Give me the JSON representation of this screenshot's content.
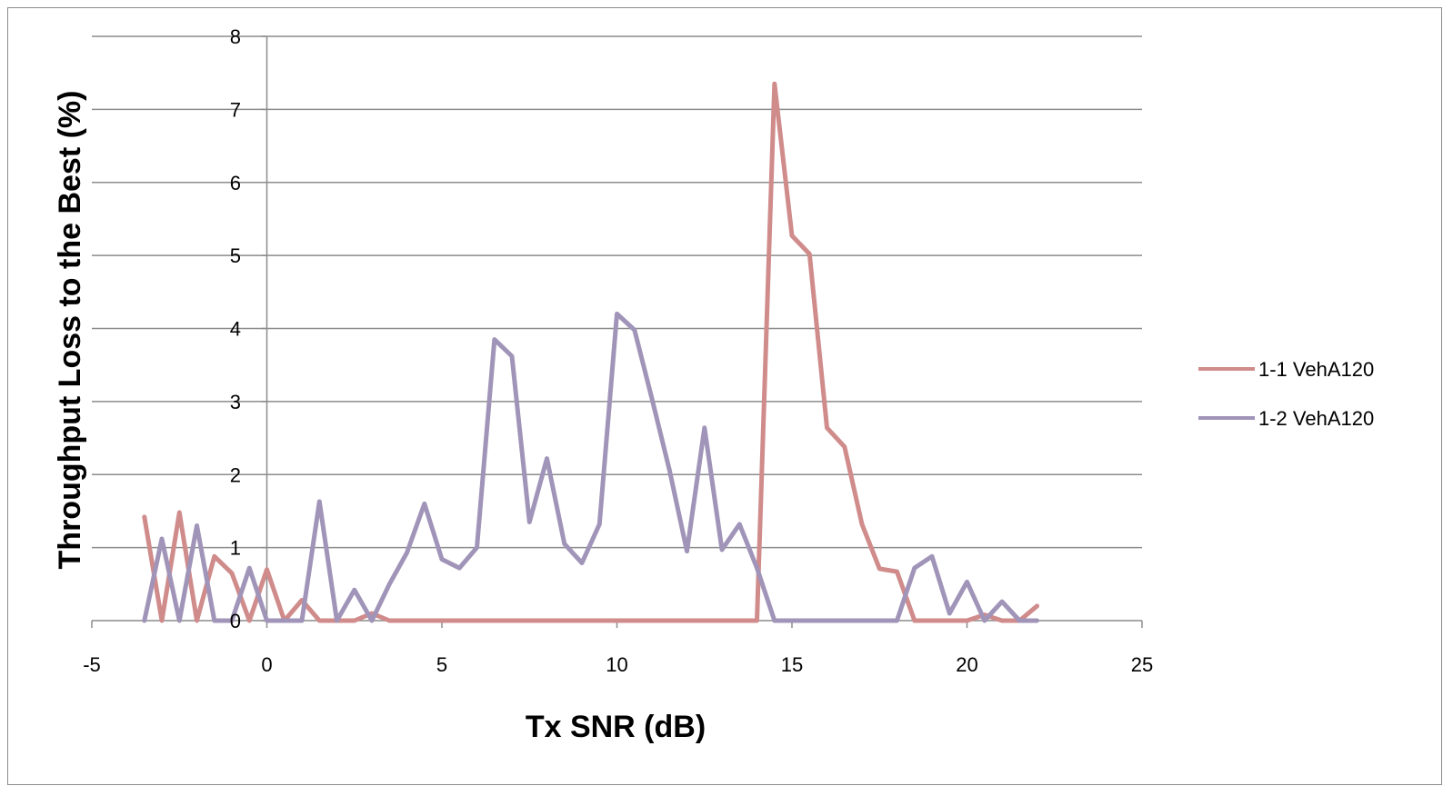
{
  "chart_data": {
    "type": "line",
    "title": "",
    "xlabel": "Tx SNR (dB)",
    "ylabel": "Throughput Loss to the Best (%)",
    "xlim": [
      -5,
      25
    ],
    "ylim": [
      0,
      8
    ],
    "xticks": [
      -5,
      0,
      5,
      10,
      15,
      20,
      25
    ],
    "yticks": [
      0,
      1,
      2,
      3,
      4,
      5,
      6,
      7,
      8
    ],
    "grid": "horizontal",
    "legend_position": "right",
    "series": [
      {
        "name": "1-1 VehA120",
        "color": "#d08b8b",
        "points": [
          [
            -3.5,
            1.42
          ],
          [
            -3.0,
            0.0
          ],
          [
            -2.5,
            1.48
          ],
          [
            -2.0,
            0.0
          ],
          [
            -1.5,
            0.88
          ],
          [
            -1.0,
            0.65
          ],
          [
            -0.5,
            0.0
          ],
          [
            0.0,
            0.7
          ],
          [
            0.5,
            0.0
          ],
          [
            1.0,
            0.28
          ],
          [
            1.5,
            0.0
          ],
          [
            2.0,
            0.0
          ],
          [
            2.5,
            0.0
          ],
          [
            3.0,
            0.1
          ],
          [
            3.5,
            0.0
          ],
          [
            4.0,
            0.0
          ],
          [
            5.0,
            0.0
          ],
          [
            6.0,
            0.0
          ],
          [
            7.0,
            0.0
          ],
          [
            8.0,
            0.0
          ],
          [
            9.0,
            0.0
          ],
          [
            10.0,
            0.0
          ],
          [
            11.0,
            0.0
          ],
          [
            12.0,
            0.0
          ],
          [
            13.0,
            0.0
          ],
          [
            14.0,
            0.0
          ],
          [
            14.5,
            7.35
          ],
          [
            15.0,
            5.27
          ],
          [
            15.5,
            5.02
          ],
          [
            16.0,
            2.64
          ],
          [
            16.5,
            2.38
          ],
          [
            17.0,
            1.32
          ],
          [
            17.5,
            0.71
          ],
          [
            18.0,
            0.67
          ],
          [
            18.5,
            0.0
          ],
          [
            19.0,
            0.0
          ],
          [
            19.5,
            0.0
          ],
          [
            20.0,
            0.0
          ],
          [
            20.5,
            0.08
          ],
          [
            21.0,
            0.0
          ],
          [
            21.5,
            0.0
          ],
          [
            22.0,
            0.2
          ]
        ]
      },
      {
        "name": "1-2 VehA120",
        "color": "#a094b8",
        "points": [
          [
            -3.5,
            0.0
          ],
          [
            -3.0,
            1.12
          ],
          [
            -2.5,
            0.0
          ],
          [
            -2.0,
            1.3
          ],
          [
            -1.5,
            0.0
          ],
          [
            -1.0,
            0.0
          ],
          [
            -0.5,
            0.72
          ],
          [
            0.0,
            0.0
          ],
          [
            0.5,
            0.0
          ],
          [
            1.0,
            0.0
          ],
          [
            1.5,
            1.63
          ],
          [
            2.0,
            0.0
          ],
          [
            2.5,
            0.42
          ],
          [
            3.0,
            0.0
          ],
          [
            3.5,
            0.5
          ],
          [
            4.0,
            0.93
          ],
          [
            4.5,
            1.6
          ],
          [
            5.0,
            0.84
          ],
          [
            5.5,
            0.72
          ],
          [
            6.0,
            1.0
          ],
          [
            6.5,
            3.85
          ],
          [
            7.0,
            3.62
          ],
          [
            7.5,
            1.35
          ],
          [
            8.0,
            2.22
          ],
          [
            8.5,
            1.05
          ],
          [
            9.0,
            0.79
          ],
          [
            9.5,
            1.32
          ],
          [
            10.0,
            4.2
          ],
          [
            10.5,
            3.98
          ],
          [
            11.0,
            3.04
          ],
          [
            11.5,
            2.06
          ],
          [
            12.0,
            0.95
          ],
          [
            12.5,
            2.64
          ],
          [
            13.0,
            0.97
          ],
          [
            13.5,
            1.32
          ],
          [
            14.0,
            0.72
          ],
          [
            14.5,
            0.0
          ],
          [
            15.0,
            0.0
          ],
          [
            16.0,
            0.0
          ],
          [
            17.0,
            0.0
          ],
          [
            18.0,
            0.0
          ],
          [
            18.5,
            0.72
          ],
          [
            19.0,
            0.88
          ],
          [
            19.5,
            0.1
          ],
          [
            20.0,
            0.53
          ],
          [
            20.5,
            0.0
          ],
          [
            21.0,
            0.26
          ],
          [
            21.5,
            0.0
          ],
          [
            22.0,
            0.0
          ]
        ]
      }
    ]
  }
}
